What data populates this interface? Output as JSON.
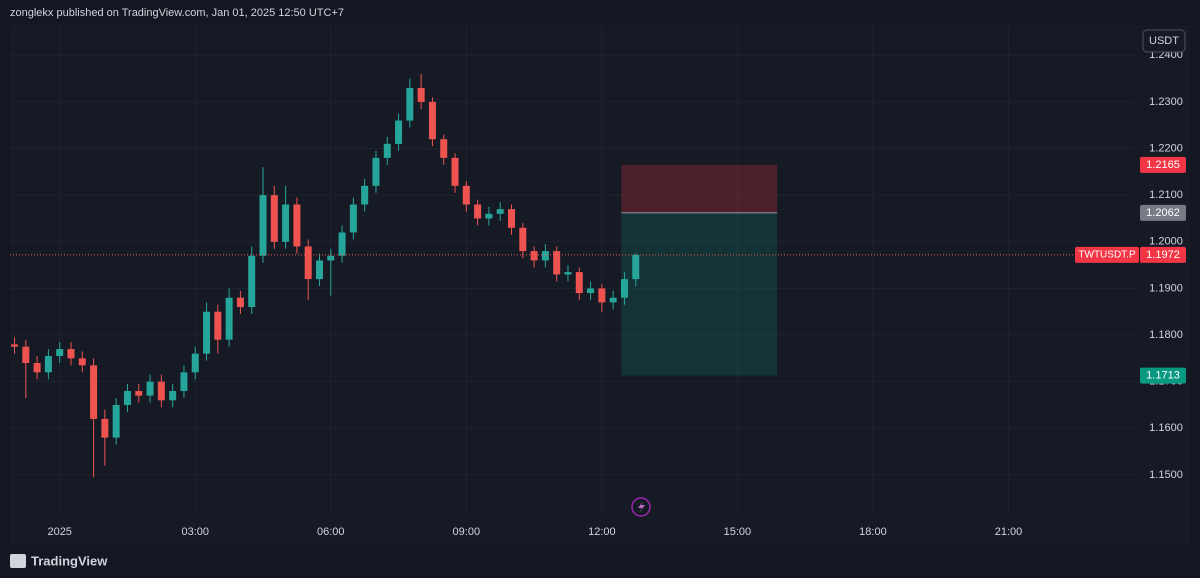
{
  "header": {
    "text": "zonglekx published on TradingView.com, Jan 01, 2025 12:50 UTC+7"
  },
  "currency_button": "USDT",
  "brand": "TradingView",
  "chart_data": {
    "type": "candlestick",
    "symbol": "TWTUSDT.P",
    "up_color": "#26a69a",
    "down_color": "#ef5350",
    "grid": true,
    "x": [
      -1,
      -0.75,
      -0.5,
      -0.25,
      0,
      0.25,
      0.5,
      0.75,
      1,
      1.25,
      1.5,
      1.75,
      2,
      2.25,
      2.5,
      2.75,
      3,
      3.25,
      3.5,
      3.75,
      4,
      4.25,
      4.5,
      4.75,
      5,
      5.25,
      5.5,
      5.75,
      6,
      6.25,
      6.5,
      6.75,
      7,
      7.25,
      7.5,
      7.75,
      8,
      8.25,
      8.5,
      8.75,
      9,
      9.25,
      9.5,
      9.75,
      10,
      10.25,
      10.5,
      10.75,
      11,
      11.25,
      11.5,
      11.75,
      12,
      12.25,
      12.5,
      12.75
    ],
    "open": [
      1.178,
      1.1775,
      1.174,
      1.172,
      1.1755,
      1.177,
      1.175,
      1.1735,
      1.162,
      1.158,
      1.165,
      1.168,
      1.167,
      1.17,
      1.166,
      1.168,
      1.172,
      1.176,
      1.185,
      1.179,
      1.188,
      1.186,
      1.197,
      1.21,
      1.2,
      1.208,
      1.199,
      1.192,
      1.196,
      1.197,
      1.202,
      1.208,
      1.212,
      1.218,
      1.221,
      1.226,
      1.233,
      1.23,
      1.222,
      1.218,
      1.212,
      1.208,
      1.205,
      1.206,
      1.207,
      1.203,
      1.198,
      1.196,
      1.198,
      1.193,
      1.1935,
      1.189,
      1.19,
      1.187,
      1.188,
      1.192
    ],
    "high": [
      1.1795,
      1.179,
      1.1755,
      1.177,
      1.1785,
      1.1785,
      1.1765,
      1.175,
      1.164,
      1.1665,
      1.1695,
      1.1695,
      1.1715,
      1.1715,
      1.1695,
      1.1735,
      1.1775,
      1.187,
      1.1865,
      1.19,
      1.1895,
      1.199,
      1.216,
      1.212,
      1.212,
      1.2095,
      1.2005,
      1.1975,
      1.1985,
      1.2035,
      1.2095,
      1.2135,
      1.2195,
      1.2225,
      1.2275,
      1.235,
      1.236,
      1.231,
      1.223,
      1.219,
      1.213,
      1.209,
      1.2075,
      1.2085,
      1.208,
      1.204,
      1.199,
      1.1995,
      1.199,
      1.195,
      1.1945,
      1.1915,
      1.191,
      1.1895,
      1.1935,
      1.1975
    ],
    "low": [
      1.176,
      1.1665,
      1.1705,
      1.1705,
      1.174,
      1.1735,
      1.172,
      1.1495,
      1.152,
      1.1565,
      1.1635,
      1.1655,
      1.1655,
      1.1645,
      1.1645,
      1.1665,
      1.1705,
      1.1745,
      1.176,
      1.1775,
      1.1845,
      1.1845,
      1.1955,
      1.1985,
      1.1985,
      1.1975,
      1.1875,
      1.1905,
      1.1885,
      1.1955,
      1.2005,
      1.2065,
      1.2105,
      1.2165,
      1.2195,
      1.2245,
      1.2285,
      1.2205,
      1.2165,
      1.2105,
      1.2065,
      1.2035,
      1.2035,
      1.2045,
      1.2015,
      1.1965,
      1.1945,
      1.1945,
      1.1915,
      1.1915,
      1.1875,
      1.1875,
      1.185,
      1.1855,
      1.1865,
      1.1905
    ],
    "close": [
      1.1775,
      1.174,
      1.172,
      1.1755,
      1.177,
      1.175,
      1.1735,
      1.162,
      1.158,
      1.165,
      1.168,
      1.167,
      1.17,
      1.166,
      1.168,
      1.172,
      1.176,
      1.185,
      1.179,
      1.188,
      1.186,
      1.197,
      1.21,
      1.2,
      1.208,
      1.199,
      1.192,
      1.196,
      1.197,
      1.202,
      1.208,
      1.212,
      1.218,
      1.221,
      1.226,
      1.233,
      1.23,
      1.222,
      1.218,
      1.212,
      1.208,
      1.205,
      1.206,
      1.207,
      1.203,
      1.198,
      1.196,
      1.198,
      1.193,
      1.1935,
      1.189,
      1.19,
      1.187,
      1.188,
      1.192,
      1.1972
    ],
    "last_price": 1.1972,
    "position": {
      "stop": 1.2165,
      "entry": 1.2062,
      "target": 1.1713,
      "x_start": 12.43,
      "x_end": 15.88
    },
    "xlim": [
      -1.1,
      23.8
    ],
    "xticks": [
      {
        "value": 0,
        "label": "2025"
      },
      {
        "value": 3,
        "label": "03:00"
      },
      {
        "value": 6,
        "label": "06:00"
      },
      {
        "value": 9,
        "label": "09:00"
      },
      {
        "value": 12,
        "label": "12:00"
      },
      {
        "value": 15,
        "label": "15:00"
      },
      {
        "value": 18,
        "label": "18:00"
      },
      {
        "value": 21,
        "label": "21:00"
      }
    ],
    "ylim": [
      1.1414,
      1.2465
    ],
    "yticks": [
      {
        "value": 1.15,
        "label": "1.1500"
      },
      {
        "value": 1.16,
        "label": "1.1600"
      },
      {
        "value": 1.17,
        "label": "1.1700"
      },
      {
        "value": 1.18,
        "label": "1.1800"
      },
      {
        "value": 1.19,
        "label": "1.1900"
      },
      {
        "value": 1.2,
        "label": "1.2000"
      },
      {
        "value": 1.21,
        "label": "1.2100"
      },
      {
        "value": 1.22,
        "label": "1.2200"
      },
      {
        "value": 1.23,
        "label": "1.2300"
      },
      {
        "value": 1.24,
        "label": "1.2400"
      }
    ]
  }
}
